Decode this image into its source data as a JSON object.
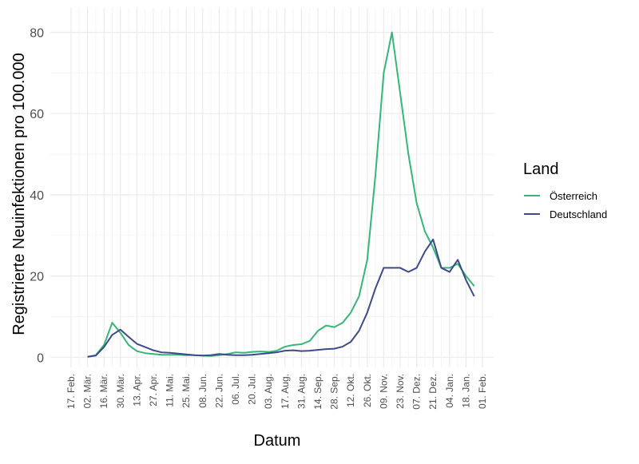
{
  "chart_data": {
    "type": "line",
    "x_label": "Datum",
    "y_label": "Registrierte Neuinfektionen pro 100.000",
    "legend_title": "Land",
    "legend_position": "right",
    "grid": true,
    "categories": [
      "17. Feb.",
      null,
      "02. Mär.",
      null,
      "16. Mär.",
      null,
      "30. Mär.",
      null,
      "13. Apr.",
      null,
      "27. Apr.",
      null,
      "11. Mai.",
      null,
      "25. Mai.",
      null,
      "08. Jun.",
      null,
      "22. Jun.",
      null,
      "06. Jul.",
      null,
      "20. Jul.",
      null,
      "03. Aug.",
      null,
      "17. Aug.",
      null,
      "31. Aug.",
      null,
      "14. Sep.",
      null,
      "28. Sep.",
      null,
      "12. Okt.",
      null,
      "26. Okt.",
      null,
      "09. Nov.",
      null,
      "23. Nov.",
      null,
      "07. Dez.",
      null,
      "21. Dez.",
      null,
      "04. Jan.",
      null,
      "18. Jan.",
      null,
      "01. Feb."
    ],
    "ylim": [
      -2.5,
      86
    ],
    "yticks": [
      0,
      20,
      40,
      60,
      80
    ],
    "series": [
      {
        "name": "Österreich",
        "color": "#35b779",
        "values": [
          null,
          null,
          0.1,
          0.5,
          3,
          8.5,
          6,
          3,
          1.5,
          1,
          0.8,
          0.6,
          0.6,
          0.6,
          0.5,
          0.5,
          0.4,
          0.3,
          0.5,
          0.8,
          1.2,
          1.1,
          1.3,
          1.4,
          1.3,
          1.6,
          2.6,
          3,
          3.2,
          4,
          6.5,
          7.8,
          7.4,
          8.5,
          11,
          15,
          24,
          45,
          70,
          80,
          65,
          50,
          38,
          31,
          27,
          22,
          22,
          23,
          20,
          17.5,
          null
        ]
      },
      {
        "name": "Deutschland",
        "color": "#3e4a89",
        "values": [
          null,
          null,
          0.1,
          0.4,
          2.5,
          5.5,
          6.8,
          5,
          3.3,
          2.5,
          1.7,
          1.2,
          1.1,
          0.9,
          0.7,
          0.5,
          0.4,
          0.5,
          0.8,
          0.6,
          0.5,
          0.5,
          0.6,
          0.8,
          1,
          1.2,
          1.6,
          1.7,
          1.5,
          1.6,
          1.8,
          2,
          2.1,
          2.6,
          3.8,
          6.5,
          11,
          17,
          22,
          22,
          22,
          21,
          22,
          26,
          29,
          22,
          21,
          24,
          19,
          15,
          null
        ]
      }
    ]
  }
}
